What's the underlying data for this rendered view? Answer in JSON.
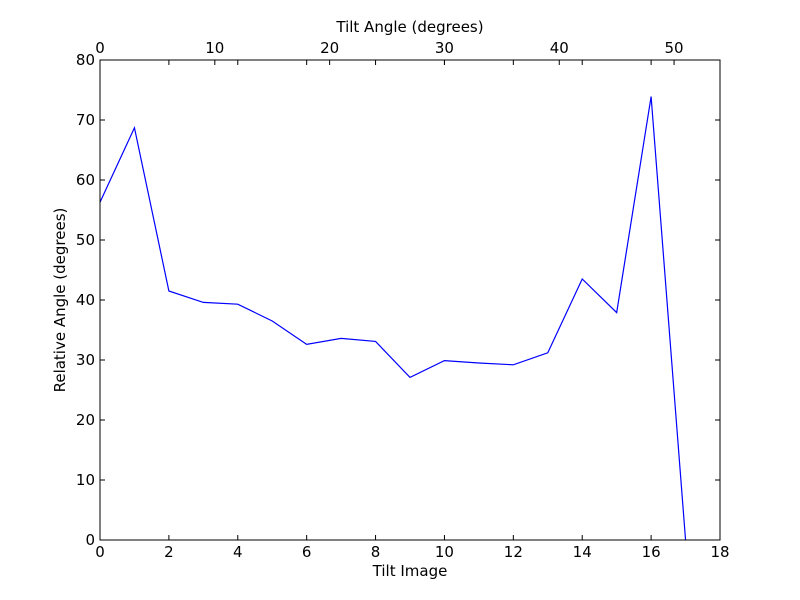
{
  "chart_data": {
    "type": "line",
    "xlabel": "Tilt Image",
    "x2label": "Tilt Angle (degrees)",
    "ylabel": "Relative Angle (degrees)",
    "xlim": [
      0,
      18
    ],
    "x2lim": [
      0,
      54
    ],
    "ylim": [
      0,
      80
    ],
    "xticks": [
      0,
      2,
      4,
      6,
      8,
      10,
      12,
      14,
      16,
      18
    ],
    "x2ticks": [
      0,
      10,
      20,
      30,
      40,
      50
    ],
    "yticks": [
      0,
      10,
      20,
      30,
      40,
      50,
      60,
      70,
      80
    ],
    "grid": false,
    "line_color": "#0000ff",
    "series": [
      {
        "x": [
          0,
          1,
          2,
          3,
          4,
          5,
          6,
          7,
          8,
          9,
          10,
          11,
          12,
          13,
          14,
          15,
          16,
          17
        ],
        "y": [
          56.3,
          68.7,
          41.5,
          39.6,
          39.3,
          36.5,
          32.6,
          33.6,
          33.1,
          27.1,
          29.9,
          29.5,
          29.2,
          31.2,
          43.5,
          37.9,
          73.9,
          0
        ]
      }
    ]
  }
}
